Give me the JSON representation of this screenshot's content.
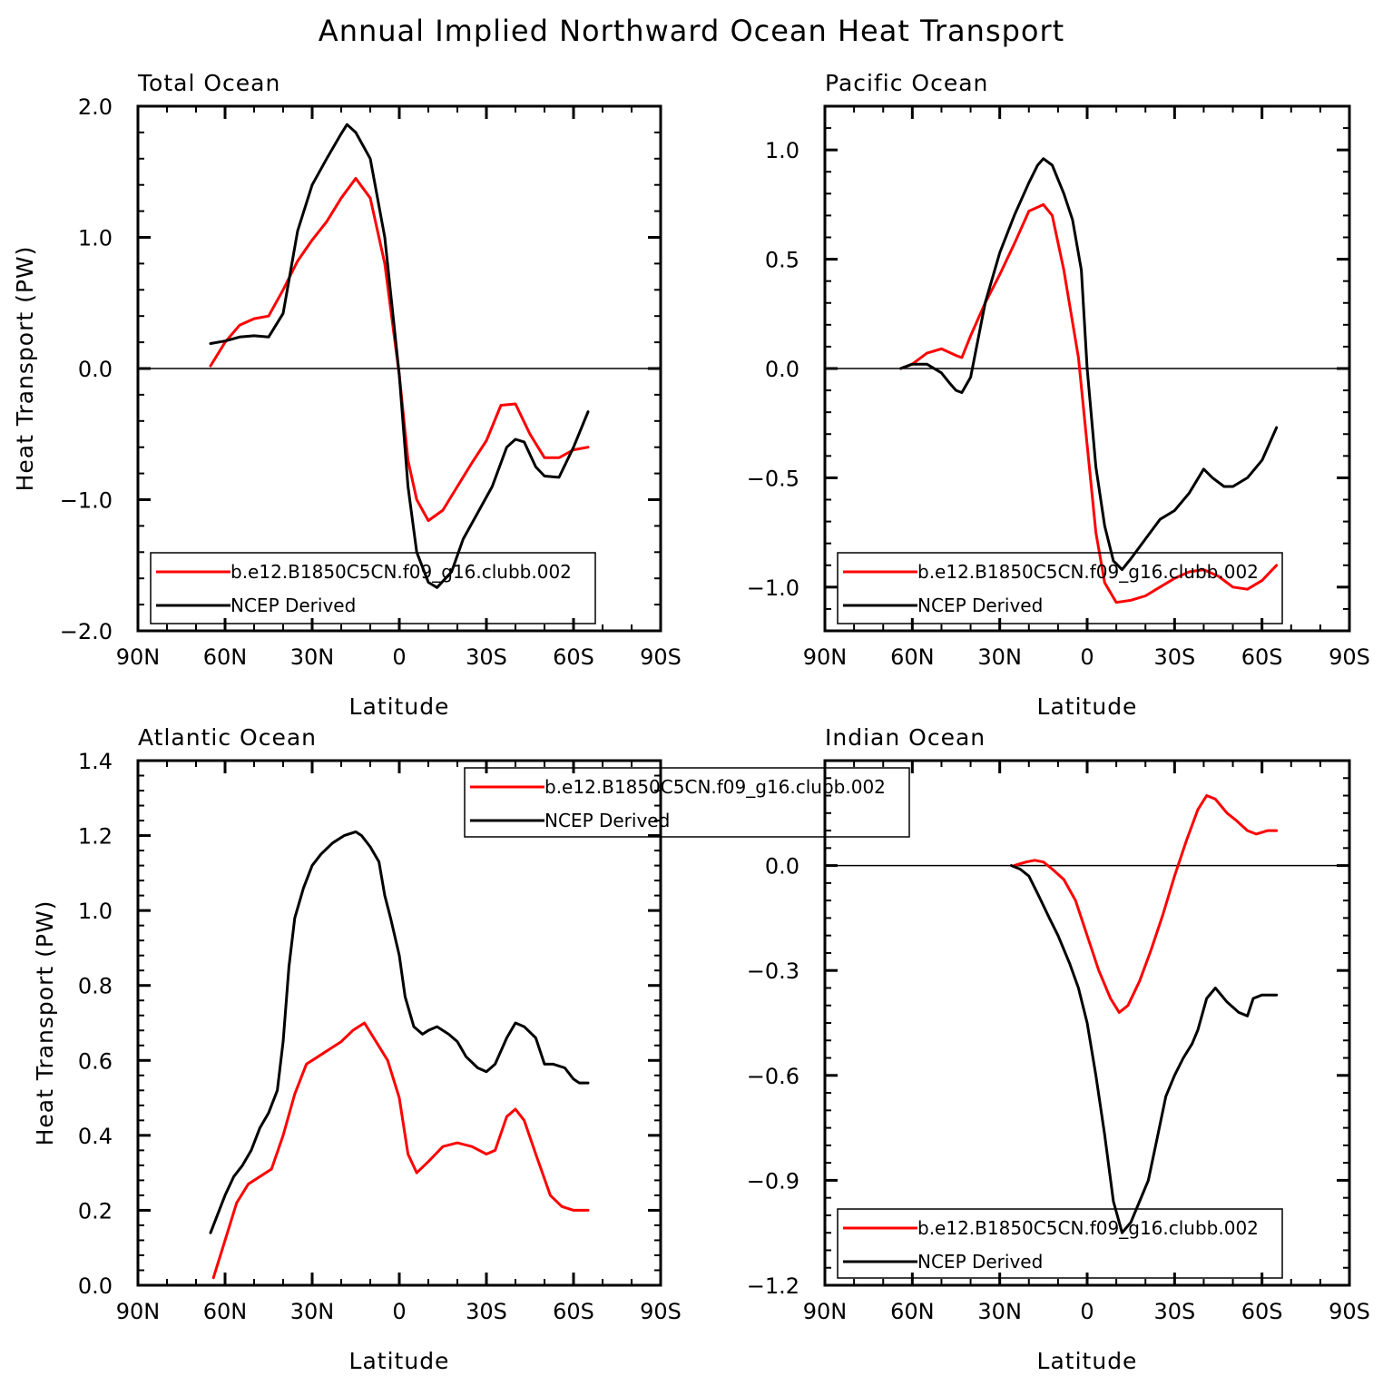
{
  "figure_title": "Annual Implied Northward Ocean Heat Transport",
  "colors": {
    "model": "#ff0000",
    "obs": "#000000"
  },
  "chart_data": [
    {
      "type": "line",
      "title": "Total Ocean",
      "xlabel": "Latitude",
      "ylabel": "Heat Transport (PW)",
      "xlim": [
        90,
        -90
      ],
      "x_ticks": [
        90,
        60,
        30,
        0,
        -30,
        -60,
        -90
      ],
      "x_tick_labels": [
        "90N",
        "60N",
        "30N",
        "0",
        "30S",
        "60S",
        "90S"
      ],
      "ylim": [
        -2.0,
        2.0
      ],
      "y_ticks": [
        -2,
        -1,
        0,
        1,
        2
      ],
      "y_tick_labels": [
        "−2.0",
        "−1.0",
        "0.0",
        "1.0",
        "2.0"
      ],
      "zero_line": true,
      "legend": {
        "position": "bottom",
        "entries": [
          "b.e12.B1850C5CN.f09_g16.clubb.002",
          "NCEP Derived"
        ]
      },
      "series": [
        {
          "name": "b.e12.B1850C5CN.f09_g16.clubb.002",
          "color": "#ff0000",
          "x": [
            65,
            60,
            55,
            50,
            45,
            40,
            35,
            30,
            25,
            20,
            15,
            10,
            5,
            0,
            -3,
            -6,
            -10,
            -15,
            -20,
            -25,
            -30,
            -35,
            -40,
            -45,
            -50,
            -55,
            -60,
            -65
          ],
          "y": [
            0.02,
            0.2,
            0.33,
            0.38,
            0.4,
            0.6,
            0.82,
            0.98,
            1.12,
            1.3,
            1.45,
            1.3,
            0.8,
            -0.05,
            -0.7,
            -1.0,
            -1.16,
            -1.08,
            -0.9,
            -0.72,
            -0.55,
            -0.28,
            -0.27,
            -0.5,
            -0.68,
            -0.68,
            -0.62,
            -0.6
          ]
        },
        {
          "name": "NCEP Derived",
          "color": "#000000",
          "x": [
            65,
            60,
            55,
            50,
            45,
            40,
            35,
            30,
            25,
            20,
            18,
            15,
            10,
            5,
            0,
            -3,
            -6,
            -10,
            -13,
            -18,
            -22,
            -27,
            -32,
            -37,
            -40,
            -43,
            -47,
            -50,
            -55,
            -60,
            -65
          ],
          "y": [
            0.19,
            0.21,
            0.24,
            0.25,
            0.24,
            0.42,
            1.05,
            1.4,
            1.6,
            1.79,
            1.86,
            1.8,
            1.6,
            1.0,
            -0.05,
            -0.9,
            -1.4,
            -1.63,
            -1.67,
            -1.55,
            -1.3,
            -1.1,
            -0.9,
            -0.6,
            -0.54,
            -0.56,
            -0.75,
            -0.82,
            -0.83,
            -0.6,
            -0.33
          ]
        }
      ]
    },
    {
      "type": "line",
      "title": "Pacific Ocean",
      "xlabel": "Latitude",
      "ylabel": "",
      "xlim": [
        90,
        -90
      ],
      "x_ticks": [
        90,
        60,
        30,
        0,
        -30,
        -60,
        -90
      ],
      "x_tick_labels": [
        "90N",
        "60N",
        "30N",
        "0",
        "30S",
        "60S",
        "90S"
      ],
      "ylim": [
        -1.2,
        1.2
      ],
      "y_ticks": [
        -1.0,
        -0.5,
        0.0,
        0.5,
        1.0
      ],
      "y_tick_labels": [
        "−1.0",
        "−0.5",
        "0.0",
        "0.5",
        "1.0"
      ],
      "zero_line": true,
      "legend": {
        "position": "bottom",
        "entries": [
          "b.e12.B1850C5CN.f09_g16.clubb.002",
          "NCEP Derived"
        ]
      },
      "series": [
        {
          "name": "b.e12.B1850C5CN.f09_g16.clubb.002",
          "color": "#ff0000",
          "x": [
            64,
            60,
            55,
            50,
            45,
            43,
            40,
            35,
            30,
            25,
            20,
            15,
            12,
            8,
            3,
            0,
            -3,
            -6,
            -10,
            -15,
            -20,
            -25,
            -30,
            -35,
            -40,
            -45,
            -50,
            -55,
            -60,
            -65
          ],
          "y": [
            0.0,
            0.02,
            0.07,
            0.09,
            0.06,
            0.05,
            0.15,
            0.3,
            0.43,
            0.57,
            0.72,
            0.75,
            0.7,
            0.45,
            0.05,
            -0.35,
            -0.75,
            -0.98,
            -1.07,
            -1.06,
            -1.04,
            -1.0,
            -0.96,
            -0.93,
            -0.92,
            -0.95,
            -1.0,
            -1.01,
            -0.97,
            -0.9
          ]
        },
        {
          "name": "NCEP Derived",
          "color": "#000000",
          "x": [
            64,
            60,
            55,
            50,
            47,
            45,
            43,
            40,
            35,
            30,
            25,
            20,
            17,
            15,
            12,
            8,
            5,
            2,
            0,
            -3,
            -6,
            -9,
            -12,
            -15,
            -20,
            -25,
            -30,
            -35,
            -40,
            -43,
            -47,
            -50,
            -55,
            -60,
            -65
          ],
          "y": [
            0.0,
            0.02,
            0.02,
            -0.02,
            -0.07,
            -0.1,
            -0.11,
            -0.04,
            0.3,
            0.53,
            0.7,
            0.85,
            0.93,
            0.96,
            0.93,
            0.8,
            0.68,
            0.45,
            0.0,
            -0.45,
            -0.72,
            -0.88,
            -0.92,
            -0.87,
            -0.78,
            -0.69,
            -0.65,
            -0.57,
            -0.46,
            -0.5,
            -0.54,
            -0.54,
            -0.5,
            -0.42,
            -0.27
          ]
        }
      ]
    },
    {
      "type": "line",
      "title": "Atlantic Ocean",
      "xlabel": "Latitude",
      "ylabel": "Heat Transport (PW)",
      "xlim": [
        90,
        -90
      ],
      "x_ticks": [
        90,
        60,
        30,
        0,
        -30,
        -60,
        -90
      ],
      "x_tick_labels": [
        "90N",
        "60N",
        "30N",
        "0",
        "30S",
        "60S",
        "90S"
      ],
      "ylim": [
        0.0,
        1.4
      ],
      "y_ticks": [
        0.0,
        0.2,
        0.4,
        0.6,
        0.8,
        1.0,
        1.2,
        1.4
      ],
      "y_tick_labels": [
        "0.0",
        "0.2",
        "0.4",
        "0.6",
        "0.8",
        "1.0",
        "1.2",
        "1.4"
      ],
      "zero_line": false,
      "legend": {
        "position": "top",
        "entries": [
          "b.e12.B1850C5CN.f09_g16.clubb.002",
          "NCEP Derived"
        ]
      },
      "series": [
        {
          "name": "b.e12.B1850C5CN.f09_g16.clubb.002",
          "color": "#ff0000",
          "x": [
            64,
            60,
            56,
            52,
            48,
            44,
            40,
            36,
            32,
            28,
            24,
            20,
            16,
            12,
            8,
            4,
            0,
            -3,
            -6,
            -10,
            -15,
            -20,
            -25,
            -30,
            -33,
            -37,
            -40,
            -43,
            -47,
            -52,
            -56,
            -60,
            -65
          ],
          "y": [
            0.02,
            0.12,
            0.22,
            0.27,
            0.29,
            0.31,
            0.4,
            0.51,
            0.59,
            0.61,
            0.63,
            0.65,
            0.68,
            0.7,
            0.65,
            0.6,
            0.5,
            0.35,
            0.3,
            0.33,
            0.37,
            0.38,
            0.37,
            0.35,
            0.36,
            0.45,
            0.47,
            0.44,
            0.35,
            0.24,
            0.21,
            0.2,
            0.2
          ]
        },
        {
          "name": "NCEP Derived",
          "color": "#000000",
          "x": [
            65,
            63,
            60,
            57,
            54,
            51,
            48,
            45,
            42,
            40,
            38,
            36,
            33,
            30,
            27,
            23,
            19,
            15,
            13,
            10,
            7,
            5,
            3,
            0,
            -2,
            -5,
            -8,
            -10,
            -13,
            -17,
            -20,
            -23,
            -27,
            -30,
            -33,
            -37,
            -40,
            -43,
            -47,
            -50,
            -53,
            -57,
            -60,
            -62,
            -65
          ],
          "y": [
            0.14,
            0.18,
            0.24,
            0.29,
            0.32,
            0.36,
            0.42,
            0.46,
            0.52,
            0.65,
            0.85,
            0.98,
            1.06,
            1.12,
            1.15,
            1.18,
            1.2,
            1.21,
            1.2,
            1.17,
            1.13,
            1.04,
            0.98,
            0.88,
            0.77,
            0.69,
            0.67,
            0.68,
            0.69,
            0.67,
            0.65,
            0.61,
            0.58,
            0.57,
            0.59,
            0.66,
            0.7,
            0.69,
            0.66,
            0.59,
            0.59,
            0.58,
            0.55,
            0.54,
            0.54
          ]
        }
      ]
    },
    {
      "type": "line",
      "title": "Indian Ocean",
      "xlabel": "Latitude",
      "ylabel": "",
      "xlim": [
        90,
        -90
      ],
      "x_ticks": [
        90,
        60,
        30,
        0,
        -30,
        -60,
        -90
      ],
      "x_tick_labels": [
        "90N",
        "60N",
        "30N",
        "0",
        "30S",
        "60S",
        "90S"
      ],
      "ylim": [
        -1.2,
        0.3
      ],
      "y_ticks": [
        -1.2,
        -0.9,
        -0.6,
        -0.3,
        0.0
      ],
      "y_tick_labels": [
        "−1.2",
        "−0.9",
        "−0.6",
        "−0.3",
        "0.0"
      ],
      "zero_line": true,
      "legend": {
        "position": "bottom",
        "entries": [
          "b.e12.B1850C5CN.f09_g16.clubb.002",
          "NCEP Derived"
        ]
      },
      "series": [
        {
          "name": "b.e12.B1850C5CN.f09_g16.clubb.002",
          "color": "#ff0000",
          "x": [
            25,
            21,
            18,
            15,
            12,
            8,
            4,
            0,
            -4,
            -8,
            -11,
            -14,
            -18,
            -22,
            -26,
            -30,
            -34,
            -38,
            -41,
            -44,
            -48,
            -51,
            -55,
            -58,
            -62,
            -65
          ],
          "y": [
            0.0,
            0.01,
            0.015,
            0.01,
            -0.01,
            -0.04,
            -0.1,
            -0.2,
            -0.3,
            -0.38,
            -0.42,
            -0.4,
            -0.33,
            -0.24,
            -0.14,
            -0.03,
            0.07,
            0.16,
            0.2,
            0.19,
            0.15,
            0.13,
            0.1,
            0.09,
            0.1,
            0.1
          ]
        },
        {
          "name": "NCEP Derived",
          "color": "#000000",
          "x": [
            26,
            23,
            20,
            17,
            13,
            10,
            6,
            3,
            0,
            -3,
            -6,
            -9,
            -12,
            -15,
            -18,
            -21,
            -24,
            -27,
            -30,
            -33,
            -36,
            -38,
            -41,
            -44,
            -48,
            -52,
            -55,
            -57,
            -60,
            -65
          ],
          "y": [
            0.0,
            -0.01,
            -0.03,
            -0.08,
            -0.15,
            -0.2,
            -0.28,
            -0.35,
            -0.45,
            -0.6,
            -0.77,
            -0.96,
            -1.05,
            -1.02,
            -0.96,
            -0.9,
            -0.78,
            -0.66,
            -0.6,
            -0.55,
            -0.51,
            -0.47,
            -0.38,
            -0.35,
            -0.39,
            -0.42,
            -0.43,
            -0.38,
            -0.37,
            -0.37
          ]
        }
      ]
    }
  ]
}
